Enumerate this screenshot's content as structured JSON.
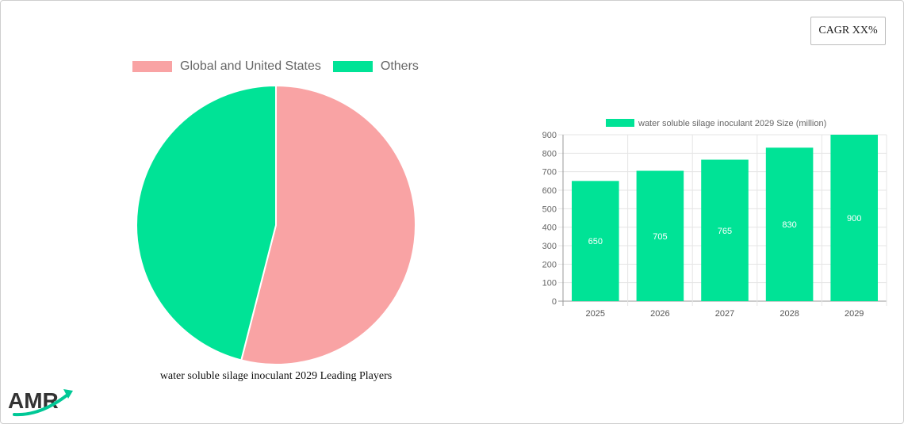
{
  "cagr_label": "CAGR XX%",
  "colors": {
    "pink": "#f9a3a4",
    "green": "#00e396"
  },
  "logo_text": "AMR",
  "chart_data": [
    {
      "type": "pie",
      "title": "water soluble silage inoculant 2029 Leading Players",
      "legend_position": "top",
      "slices": [
        {
          "label": "Global and United States",
          "value": 54,
          "color": "#f9a3a4"
        },
        {
          "label": "Others",
          "value": 46,
          "color": "#00e396"
        }
      ]
    },
    {
      "type": "bar",
      "title": "",
      "legend": "water soluble silage inoculant 2029 Size (million)",
      "legend_position": "top",
      "categories": [
        "2025",
        "2026",
        "2027",
        "2028",
        "2029"
      ],
      "values": [
        650,
        705,
        765,
        830,
        900
      ],
      "ylim": [
        0,
        900
      ],
      "yticks": [
        0,
        100,
        200,
        300,
        400,
        500,
        600,
        700,
        800,
        900
      ],
      "grid": true,
      "xlabel": "",
      "ylabel": "",
      "color": "#00e396"
    }
  ]
}
